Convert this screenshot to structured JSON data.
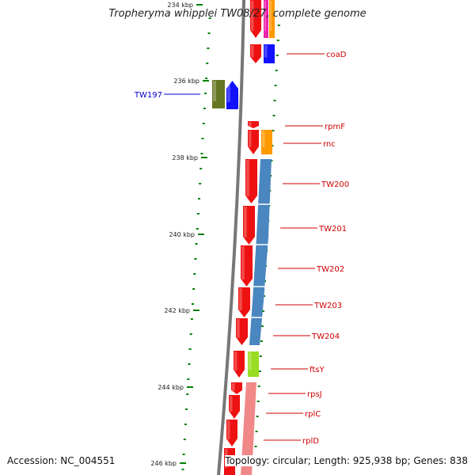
{
  "title": "Tropheryma whipplei TW08/27, complete genome",
  "footer": {
    "accession": "Accession: NC_004551",
    "topology": "Topology: circular; Length: 925,938 bp; Genes: 838"
  },
  "ticks": [
    "234 kbp",
    "236 kbp",
    "238 kbp",
    "240 kbp",
    "242 kbp",
    "244 kbp",
    "246 kbp"
  ],
  "gene_labels": [
    "coaD",
    "TW197",
    "rpmF",
    "rnc",
    "TW200",
    "TW201",
    "TW202",
    "TW203",
    "TW204",
    "ftsY",
    "rpsJ",
    "rplC",
    "rplD"
  ],
  "colors": {
    "backbone": "#777777",
    "gene_red": "#ee1111",
    "label_red": "#d00000",
    "label_blue": "#0000cc",
    "tick_green": "#008000",
    "blue": "#1111ff",
    "olive": "#667722",
    "orange": "#ff9900",
    "steelblue": "#4a86c0",
    "lime": "#99dd22",
    "pink": "#f08888",
    "magenta": "#ee22aa"
  }
}
